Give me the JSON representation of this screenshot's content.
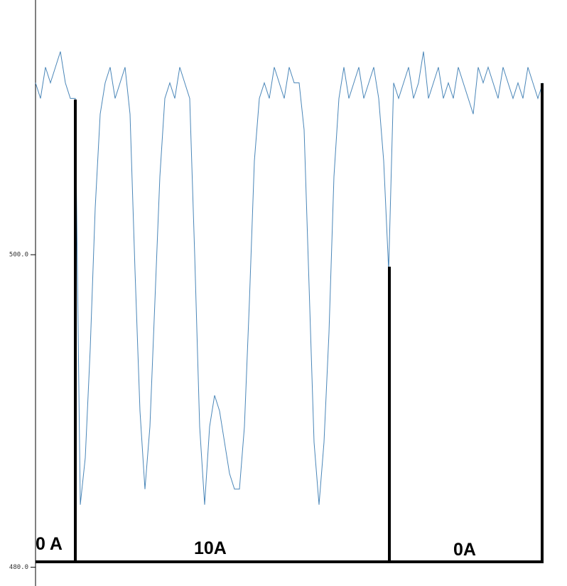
{
  "chart_data": {
    "type": "line",
    "series": [
      {
        "color": "#4a86b8",
        "values": [
          511,
          510,
          512,
          511,
          512,
          513,
          511,
          510,
          510,
          484,
          487,
          494,
          503,
          509,
          511,
          512,
          510,
          511,
          512,
          509,
          499,
          490,
          485,
          489,
          497,
          505,
          510,
          511,
          510,
          512,
          511,
          510,
          500,
          489,
          484,
          489,
          491,
          490,
          488,
          486,
          485,
          485,
          489,
          497,
          506,
          510,
          511,
          510,
          512,
          511,
          510,
          512,
          511,
          511,
          508,
          498,
          488,
          484,
          488,
          495,
          505,
          510,
          512,
          510,
          511,
          512,
          510,
          511,
          512,
          510,
          506,
          499,
          511,
          510,
          511,
          512,
          510,
          511,
          513,
          510,
          511,
          512,
          510,
          511,
          510,
          512,
          511,
          510,
          509,
          512,
          511,
          512,
          511,
          510,
          512,
          511,
          510,
          511,
          510,
          512,
          511,
          510,
          511
        ]
      }
    ],
    "ylim": [
      478.8,
      516.3
    ],
    "yticks": [
      {
        "value": 500,
        "label": "500.0"
      },
      {
        "value": 480,
        "label": "480.0"
      }
    ],
    "annotations": [
      "0 A",
      "10A",
      "0A"
    ]
  }
}
